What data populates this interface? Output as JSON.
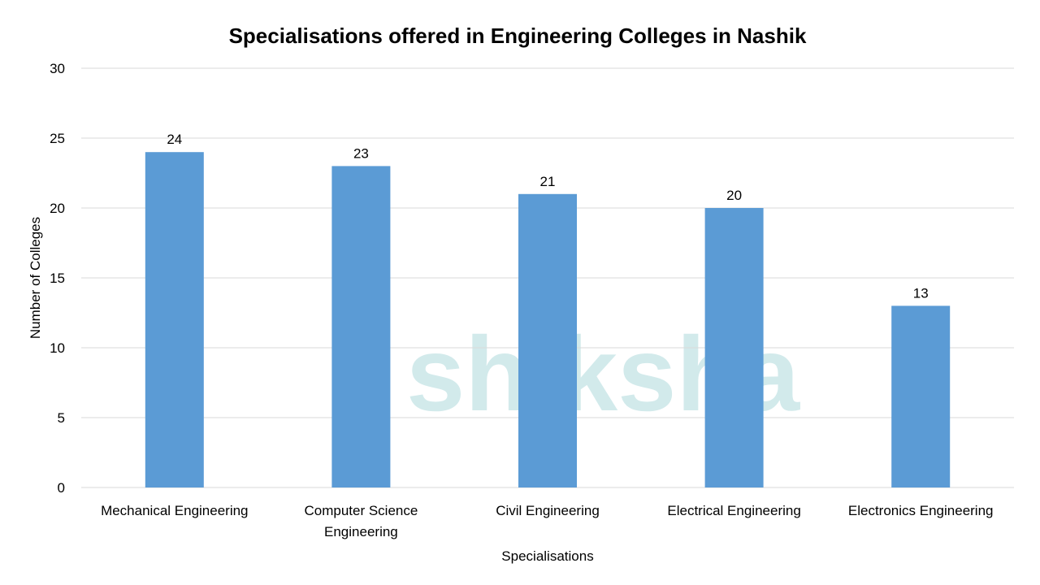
{
  "chart_data": {
    "type": "bar",
    "title": "Specialisations offered in Engineering Colleges in Nashik",
    "xlabel": "Specialisations",
    "ylabel": "Number of Colleges",
    "categories": [
      [
        "Mechanical Engineering"
      ],
      [
        "Computer Science",
        "Engineering"
      ],
      [
        "Civil Engineering"
      ],
      [
        "Electrical Engineering"
      ],
      [
        "Electronics Engineering"
      ]
    ],
    "values": [
      24,
      23,
      21,
      20,
      13
    ],
    "ylim": [
      0,
      30
    ],
    "yticks": [
      0,
      5,
      10,
      15,
      20,
      25,
      30
    ],
    "grid": true,
    "legend": "none",
    "bar_color": "#5b9bd5"
  },
  "watermark": "shiksha"
}
